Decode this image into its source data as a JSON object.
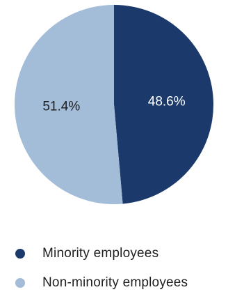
{
  "chart_data": {
    "type": "pie",
    "title": "",
    "start_angle_deg": 0,
    "direction": "clockwise",
    "series": [
      {
        "name": "Minority employees",
        "value": 48.6,
        "label": "48.6%",
        "color": "#1b3a6b",
        "label_color": "#ffffff"
      },
      {
        "name": "Non-minority employees",
        "value": 51.4,
        "label": "51.4%",
        "color": "#a3bcd8",
        "label_color": "#1f1f1f"
      }
    ],
    "legend": {
      "placement": "bottom-left",
      "items": [
        "Minority employees",
        "Non-minority employees"
      ]
    }
  }
}
